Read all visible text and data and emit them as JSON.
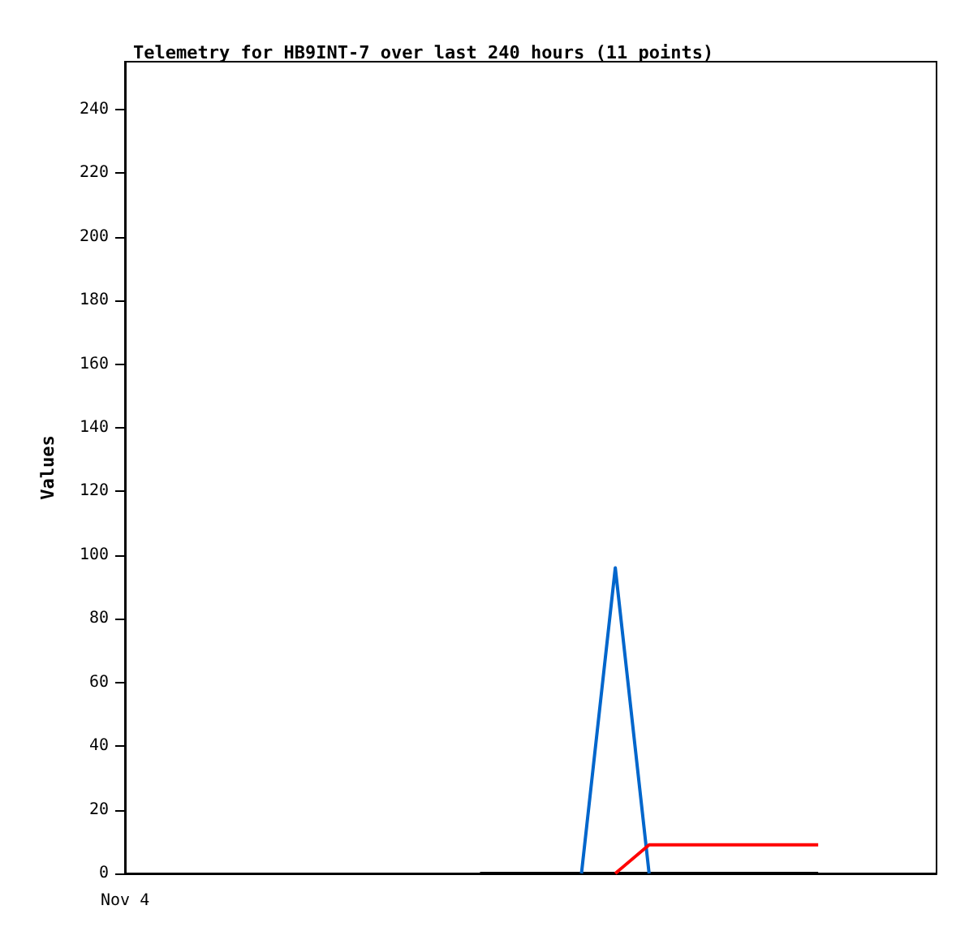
{
  "chart_data": {
    "type": "line",
    "title": "Telemetry for HB9INT-7 over last 240 hours (11 points)",
    "ylabel": "Values",
    "annotations": [
      "Nov 4"
    ],
    "categories": [
      null,
      null,
      null,
      null,
      null,
      null,
      null,
      null,
      null,
      null,
      null,
      null,
      null,
      null,
      null,
      null,
      null,
      null,
      null,
      null,
      null,
      null,
      null,
      null
    ],
    "ylim": [
      0,
      255
    ],
    "yticks": [
      0,
      20,
      40,
      60,
      80,
      100,
      120,
      140,
      160,
      180,
      200,
      220,
      240
    ],
    "grid": false,
    "marker": "none",
    "series": [
      {
        "color": "#000000",
        "values": [
          null,
          null,
          null,
          null,
          null,
          null,
          null,
          null,
          null,
          null,
          0,
          0,
          0,
          0,
          0,
          0,
          0,
          0,
          0,
          0,
          0,
          null,
          null,
          null
        ]
      },
      {
        "color": "#0066cc",
        "values": [
          null,
          null,
          null,
          null,
          null,
          null,
          null,
          null,
          null,
          null,
          null,
          null,
          null,
          0,
          96,
          0,
          null,
          null,
          null,
          null,
          null,
          null,
          null,
          null
        ]
      },
      {
        "color": "#ff0000",
        "values": [
          null,
          null,
          null,
          null,
          null,
          null,
          null,
          null,
          null,
          null,
          null,
          null,
          null,
          null,
          0,
          9,
          9,
          9,
          9,
          9,
          9,
          null,
          null,
          null
        ]
      }
    ]
  }
}
